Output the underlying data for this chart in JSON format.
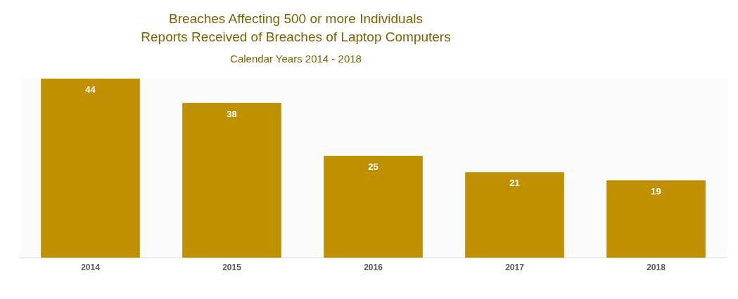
{
  "chart_data": {
    "type": "bar",
    "title": "Breaches Affecting 500 or more Individuals\nReports Received of Breaches of Laptop Computers",
    "subtitle": "Calendar Years 2014 - 2018",
    "categories": [
      "2014",
      "2015",
      "2016",
      "2017",
      "2018"
    ],
    "values": [
      44,
      38,
      25,
      21,
      19
    ],
    "color": "#bf9000",
    "data_labels": true
  }
}
